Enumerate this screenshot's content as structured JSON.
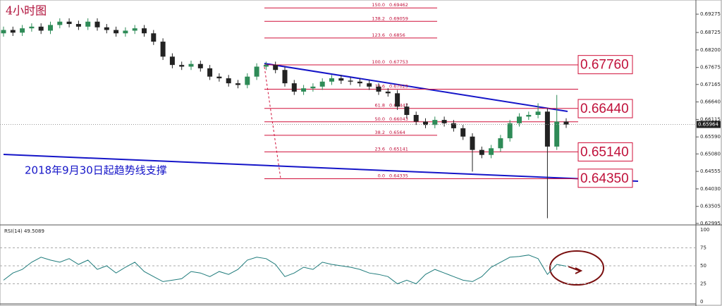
{
  "chart_data": {
    "type": "candlestick",
    "title": "4小时图",
    "annotation": "2018年9月30日起趋势线支撑",
    "up_color": "#2e8b57",
    "down_color": "#222222",
    "fib_color": "#d0103a",
    "open": [
      0.687,
      0.688,
      0.6872,
      0.6885,
      0.689,
      0.6878,
      0.6895,
      0.6905,
      0.6898,
      0.689,
      0.6905,
      0.6888,
      0.688,
      0.687,
      0.6878,
      0.6885,
      0.687,
      0.6845,
      0.68,
      0.6775,
      0.677,
      0.6778,
      0.6765,
      0.674,
      0.6735,
      0.672,
      0.6715,
      0.674,
      0.677,
      0.6775,
      0.676,
      0.672,
      0.6695,
      0.6705,
      0.671,
      0.6725,
      0.6735,
      0.6728,
      0.6725,
      0.672,
      0.671,
      0.6695,
      0.669,
      0.665,
      0.6625,
      0.6605,
      0.6595,
      0.661,
      0.66,
      0.6585,
      0.656,
      0.652,
      0.6505,
      0.6525,
      0.6555,
      0.66,
      0.662,
      0.6625,
      0.6635,
      0.653,
      0.6605
    ],
    "high": [
      0.689,
      0.689,
      0.6895,
      0.69,
      0.69,
      0.6905,
      0.6915,
      0.6915,
      0.6908,
      0.6915,
      0.6915,
      0.6898,
      0.689,
      0.6888,
      0.6895,
      0.6895,
      0.688,
      0.6855,
      0.681,
      0.6785,
      0.6788,
      0.6788,
      0.6775,
      0.675,
      0.6745,
      0.673,
      0.675,
      0.678,
      0.6785,
      0.6785,
      0.677,
      0.673,
      0.6715,
      0.672,
      0.6735,
      0.6745,
      0.6745,
      0.6738,
      0.6735,
      0.673,
      0.672,
      0.6705,
      0.67,
      0.666,
      0.6635,
      0.6615,
      0.662,
      0.662,
      0.661,
      0.6595,
      0.657,
      0.653,
      0.6535,
      0.6565,
      0.661,
      0.663,
      0.6635,
      0.666,
      0.6645,
      0.6685,
      0.6615
    ],
    "low": [
      0.686,
      0.6862,
      0.6862,
      0.6875,
      0.6868,
      0.6868,
      0.6885,
      0.6888,
      0.688,
      0.688,
      0.6878,
      0.687,
      0.686,
      0.686,
      0.6868,
      0.686,
      0.6835,
      0.679,
      0.6765,
      0.676,
      0.676,
      0.6755,
      0.673,
      0.6725,
      0.671,
      0.6705,
      0.6705,
      0.673,
      0.676,
      0.675,
      0.671,
      0.6685,
      0.6685,
      0.6695,
      0.67,
      0.6715,
      0.6718,
      0.6715,
      0.671,
      0.67,
      0.6685,
      0.668,
      0.664,
      0.6615,
      0.6595,
      0.6585,
      0.6585,
      0.659,
      0.6575,
      0.655,
      0.6455,
      0.6495,
      0.6495,
      0.6515,
      0.6545,
      0.659,
      0.661,
      0.6615,
      0.6315,
      0.652,
      0.6586
    ],
    "close": [
      0.688,
      0.6872,
      0.6885,
      0.689,
      0.6878,
      0.6895,
      0.6905,
      0.6898,
      0.689,
      0.6905,
      0.6888,
      0.688,
      0.687,
      0.6878,
      0.6885,
      0.687,
      0.6845,
      0.68,
      0.6775,
      0.677,
      0.6778,
      0.6765,
      0.674,
      0.6735,
      0.672,
      0.6715,
      0.674,
      0.677,
      0.6775,
      0.676,
      0.672,
      0.6695,
      0.6705,
      0.671,
      0.6725,
      0.6735,
      0.6728,
      0.6725,
      0.672,
      0.671,
      0.6695,
      0.669,
      0.665,
      0.6625,
      0.6605,
      0.6595,
      0.661,
      0.66,
      0.6585,
      0.656,
      0.652,
      0.6505,
      0.6525,
      0.6555,
      0.66,
      0.662,
      0.6625,
      0.6635,
      0.653,
      0.6605,
      0.6596
    ],
    "ylim": [
      0.6297,
      0.697
    ],
    "yticks": [
      0.69275,
      0.68725,
      {
        "value": 0.682,
        "label": "0.68200"
      },
      0.67675,
      0.67165,
      {
        "value": 0.6664,
        "label": "0.66640"
      },
      0.66115,
      {
        "value": 0.6559,
        "label": "0.65590"
      },
      {
        "value": 0.6508,
        "label": "0.65080"
      },
      0.64555,
      {
        "value": 0.6403,
        "label": "0.64030"
      },
      0.63505,
      0.62995
    ],
    "last_price": 0.65964,
    "fib_levels": [
      {
        "ratio": "150.0",
        "price": 0.69462
      },
      {
        "ratio": "138.2",
        "price": 0.69059
      },
      {
        "ratio": "123.6",
        "price": 0.6856
      },
      {
        "ratio": "100.0",
        "price": 0.67753
      },
      {
        "ratio": "78.6",
        "price": 0.67023
      },
      {
        "ratio": "61.8",
        "price": 0.66447
      },
      {
        "ratio": "50.0",
        "price": 0.66043
      },
      {
        "ratio": "38.2",
        "price": 0.6564
      },
      {
        "ratio": "23.6",
        "price": 0.65141
      },
      {
        "ratio": "0.0",
        "price": 0.64335
      }
    ],
    "key_levels": [
      {
        "value": 0.6776,
        "label": "0.67760"
      },
      {
        "value": 0.6644,
        "label": "0.66440"
      },
      {
        "value": 0.6514,
        "label": "0.65140"
      },
      {
        "value": 0.6435,
        "label": "0.64350"
      }
    ],
    "indicator": {
      "title": "RSI(14) 49.5089",
      "color": "#1e7b7b",
      "values": [
        30,
        40,
        45,
        55,
        62,
        58,
        55,
        60,
        52,
        58,
        45,
        50,
        40,
        48,
        55,
        42,
        35,
        28,
        30,
        32,
        42,
        40,
        35,
        42,
        38,
        45,
        58,
        62,
        60,
        52,
        35,
        40,
        48,
        45,
        55,
        52,
        50,
        48,
        45,
        40,
        38,
        35,
        25,
        30,
        25,
        38,
        45,
        40,
        35,
        30,
        28,
        35,
        48,
        55,
        62,
        63,
        65,
        60,
        38,
        52,
        49.5089
      ],
      "ylim": [
        -4,
        104
      ],
      "yticks": [
        0,
        25,
        50,
        75,
        100
      ]
    }
  }
}
